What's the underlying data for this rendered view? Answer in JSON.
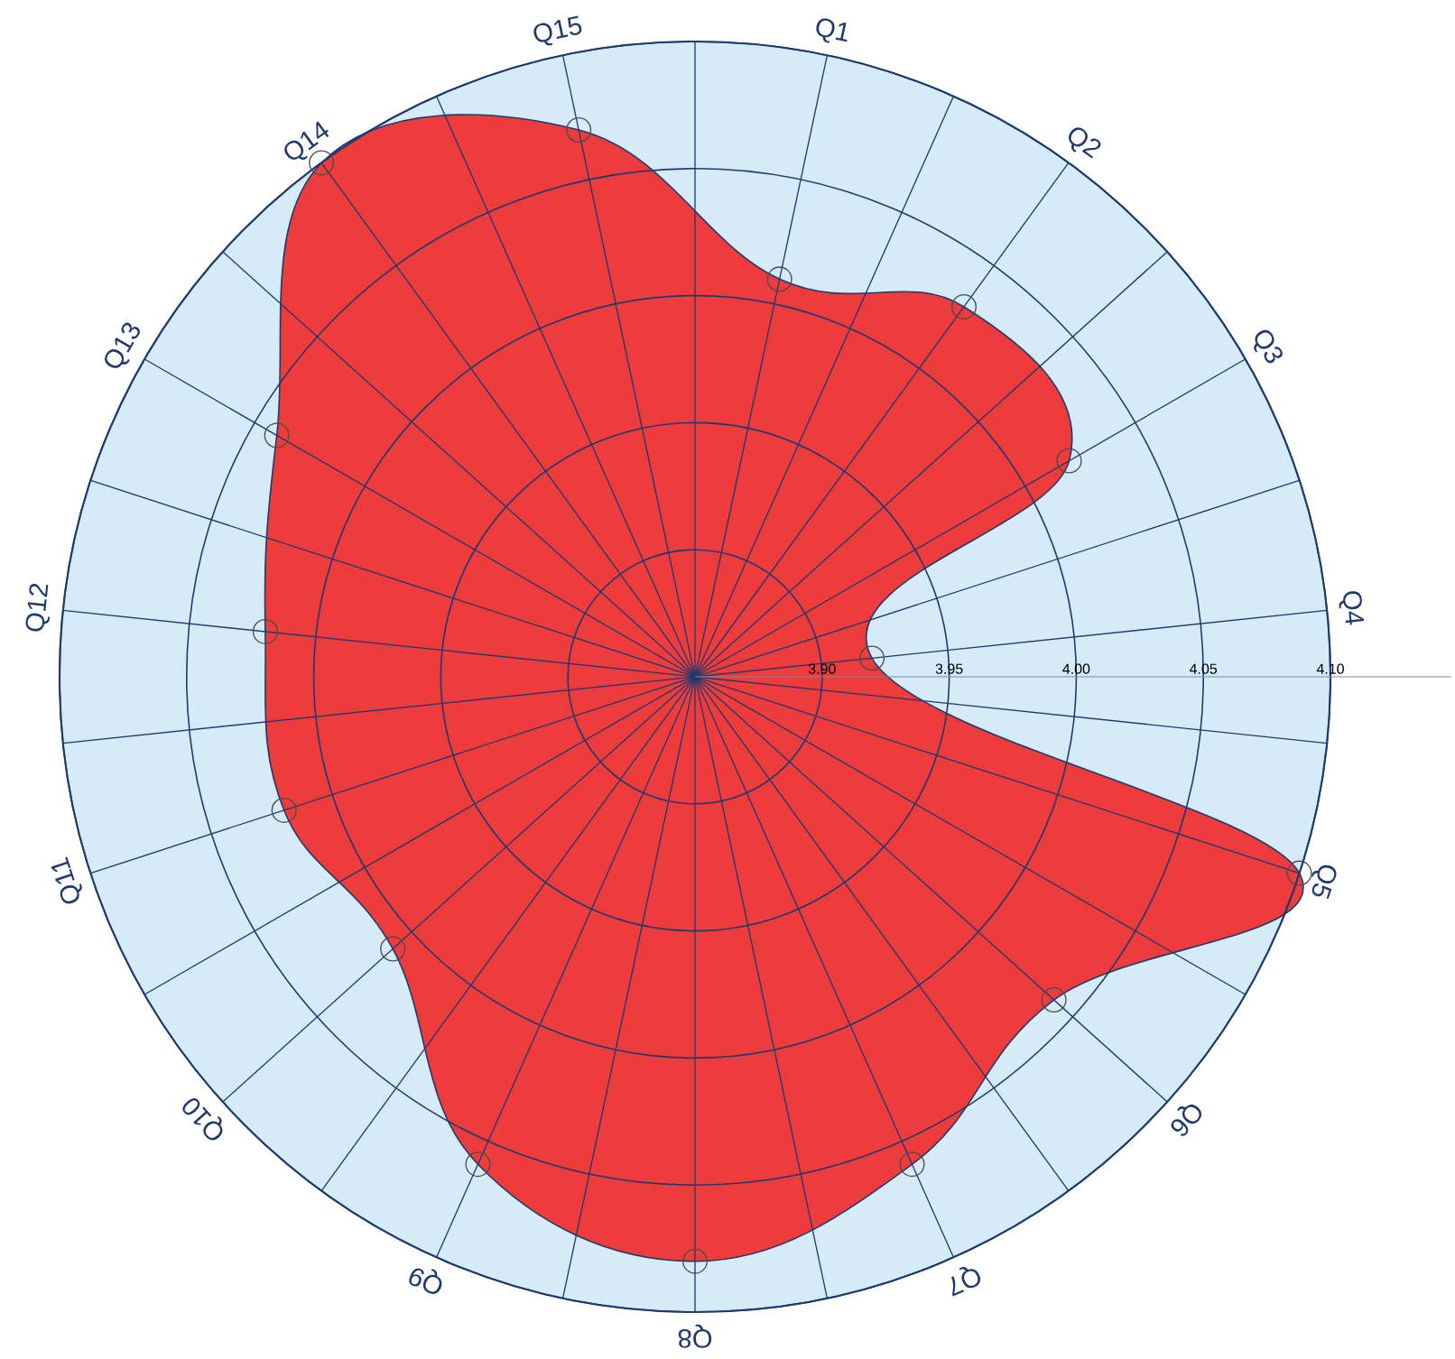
{
  "chart_data": {
    "type": "radar",
    "categories": [
      "Q1",
      "Q2",
      "Q3",
      "Q4",
      "Q5",
      "Q6",
      "Q7",
      "Q8",
      "Q9",
      "Q10",
      "Q11",
      "Q12",
      "Q13",
      "Q14",
      "Q15"
    ],
    "series": [
      {
        "color": "#ee3b3b",
        "values": [
          4.01,
          4.03,
          4.02,
          3.92,
          4.1,
          4.04,
          4.06,
          4.08,
          4.06,
          4.01,
          4.02,
          4.02,
          4.04,
          4.1,
          4.07
        ]
      }
    ],
    "ylim": [
      3.85,
      4.1
    ],
    "yticks": [
      {
        "value": 3.9,
        "label": "3.90"
      },
      {
        "value": 3.95,
        "label": "3.95"
      },
      {
        "value": 4.0,
        "label": "4.00"
      },
      {
        "value": 4.05,
        "label": "4.05"
      },
      {
        "value": 4.1,
        "label": "4.10"
      }
    ],
    "grid": true,
    "marker": "circle",
    "line_style": "solid"
  }
}
